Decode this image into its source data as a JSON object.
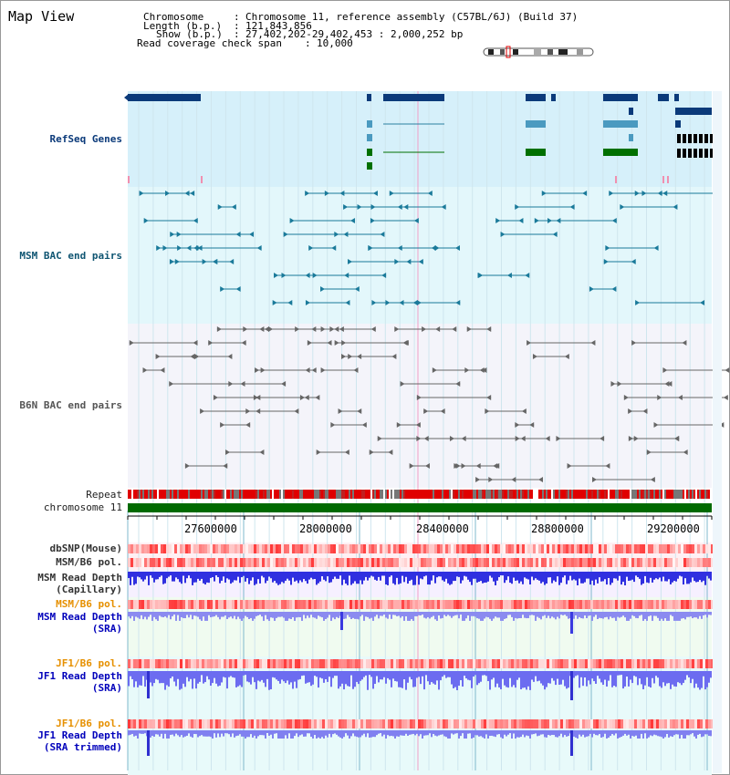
{
  "header": {
    "map_view": "Map View",
    "chromosome_label": "Chromosome",
    "chromosome_value": "Chromosome 11, reference assembly (C57BL/6J) (Build 37)",
    "length_label": "Length (b.p.)",
    "length_value": "121,843,856",
    "show_label": "Show (b.p.)",
    "show_value": "27,402,202-29,402,453 : 2,000,252 bp",
    "coverage_label": "Read coverage check span",
    "coverage_value": "10,000"
  },
  "tracks": {
    "refseq": "RefSeq Genes",
    "msm_bac": "MSM BAC end pairs",
    "b6n_bac": "B6N BAC end pairs",
    "repeat": "Repeat",
    "chromosome": "chromosome 11",
    "dbsnp": "dbSNP(Mouse)",
    "msm_b6_pol_1": "MSM/B6 pol.",
    "msm_read_depth_cap_1": "MSM Read Depth",
    "msm_read_depth_cap_2": "(Capillary)",
    "msm_b6_pol_2": "MSM/B6 pol.",
    "msm_read_depth_sra_1": "MSM Read Depth",
    "msm_read_depth_sra_2": "(SRA)",
    "jf1_b6_pol_1": "JF1/B6 pol.",
    "jf1_read_depth_sra_1": "JF1 Read Depth",
    "jf1_read_depth_sra_2": "(SRA)",
    "jf1_b6_pol_2": "JF1/B6 pol.",
    "jf1_read_depth_trim_1": "JF1 Read Depth",
    "jf1_read_depth_trim_2": "(SRA trimmed)"
  },
  "axis": {
    "ticks": [
      "27600000",
      "28000000",
      "28400000",
      "28800000",
      "29200000"
    ]
  },
  "colors": {
    "refseq_bg": "#d6f0fa",
    "msm_bg": "#e3f7fb",
    "b6n_bg": "#f4f4fa",
    "navy": "#0b3a7a",
    "teal": "#2a7fa0",
    "green": "#007000",
    "repeat_red": "#e00000",
    "chrom_green": "#006a00",
    "depth_blue": "#3030e0"
  }
}
